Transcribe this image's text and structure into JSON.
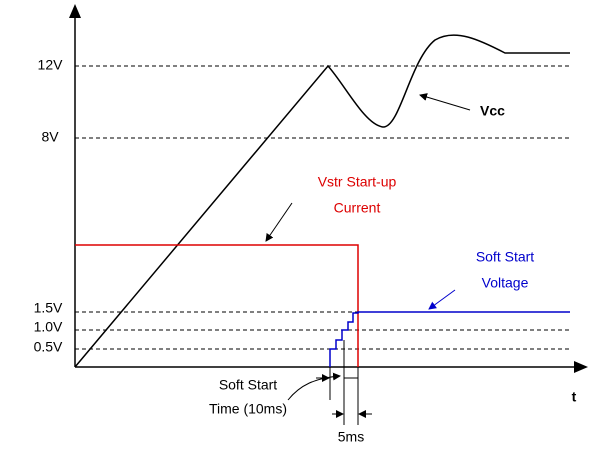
{
  "axis": {
    "y_labels": [
      "12V",
      "8V",
      "1.5V",
      "1.0V",
      "0.5V"
    ],
    "x_label": "t"
  },
  "vcc": {
    "label": "Vcc"
  },
  "vstr": {
    "label": [
      "Vstr Start-up",
      "Current"
    ]
  },
  "soft_start_voltage": {
    "label": [
      "Soft Start",
      "Voltage"
    ]
  },
  "soft_start_time": {
    "label": [
      "Soft Start",
      "Time (10ms)"
    ]
  },
  "step": {
    "label": "5ms"
  }
}
